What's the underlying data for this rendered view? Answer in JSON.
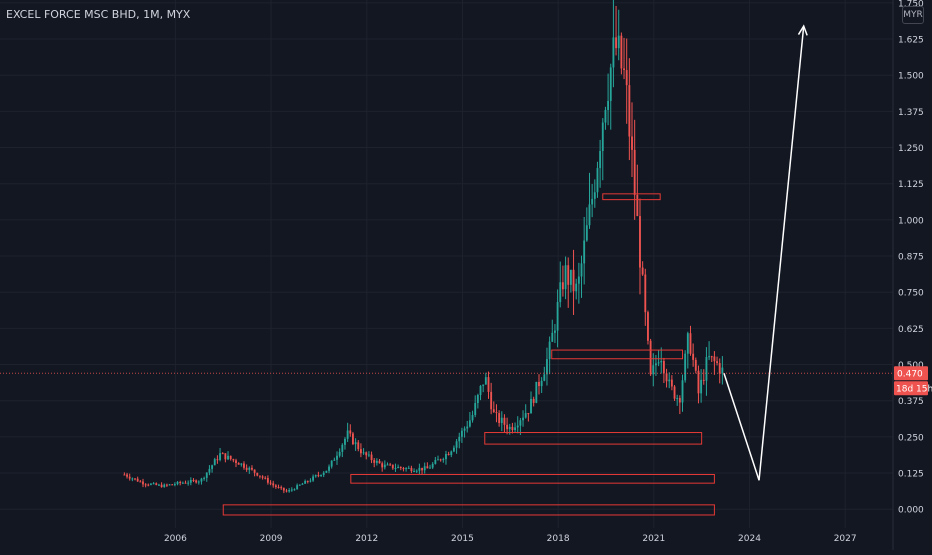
{
  "header": {
    "symbol_title": "EXCEL FORCE MSC BHD, 1M, MYX",
    "currency_button": "MYR"
  },
  "price_axis": {
    "last_price_label": "0.470",
    "countdown_label": "18d 15h"
  },
  "colors": {
    "background": "#131722",
    "grid": "#1e222d",
    "up": "#26a69a",
    "down": "#ef5350",
    "box": "#e53935",
    "arrow": "#ffffff",
    "axis_text": "#d1d4dc"
  },
  "chart_data": {
    "type": "candlestick",
    "title": "EXCEL FORCE MSC BHD, 1M, MYX",
    "ylim": [
      -0.065,
      1.76
    ],
    "xlim": [
      2000.5,
      2028.5
    ],
    "y_ticks": [
      "1.750",
      "1.625",
      "1.500",
      "1.375",
      "1.250",
      "1.125",
      "1.000",
      "0.875",
      "0.750",
      "0.625",
      "0.500",
      "0.375",
      "0.250",
      "0.125",
      "0.000"
    ],
    "x_ticks": [
      "2006",
      "2009",
      "2012",
      "2015",
      "2018",
      "2021",
      "2024",
      "2027"
    ],
    "grid": true,
    "price_path": [
      [
        2004.4,
        0.12
      ],
      [
        2005.0,
        0.09
      ],
      [
        2005.6,
        0.08
      ],
      [
        2006.1,
        0.09
      ],
      [
        2006.8,
        0.1
      ],
      [
        2007.4,
        0.19
      ],
      [
        2008.0,
        0.16
      ],
      [
        2008.6,
        0.12
      ],
      [
        2009.1,
        0.08
      ],
      [
        2009.5,
        0.06
      ],
      [
        2010.2,
        0.1
      ],
      [
        2010.8,
        0.14
      ],
      [
        2011.4,
        0.26
      ],
      [
        2011.9,
        0.19
      ],
      [
        2012.5,
        0.15
      ],
      [
        2013.3,
        0.14
      ],
      [
        2013.9,
        0.14
      ],
      [
        2014.6,
        0.2
      ],
      [
        2015.3,
        0.32
      ],
      [
        2015.7,
        0.46
      ],
      [
        2016.0,
        0.32
      ],
      [
        2016.5,
        0.28
      ],
      [
        2017.1,
        0.35
      ],
      [
        2017.7,
        0.53
      ],
      [
        2018.2,
        0.82
      ],
      [
        2018.6,
        0.75
      ],
      [
        2019.1,
        1.1
      ],
      [
        2019.5,
        1.45
      ],
      [
        2019.8,
        1.6
      ],
      [
        2020.1,
        1.48
      ],
      [
        2020.4,
        1.1
      ],
      [
        2020.7,
        0.7
      ],
      [
        2020.9,
        0.45
      ],
      [
        2021.2,
        0.55
      ],
      [
        2021.5,
        0.42
      ],
      [
        2021.8,
        0.38
      ],
      [
        2022.1,
        0.6
      ],
      [
        2022.4,
        0.4
      ],
      [
        2022.7,
        0.52
      ],
      [
        2023.0,
        0.5
      ],
      [
        2023.2,
        0.47
      ]
    ],
    "last_price": 0.47,
    "annotations": {
      "boxes": [
        {
          "x0": 2019.4,
          "x1": 2021.2,
          "y0": 1.07,
          "y1": 1.09
        },
        {
          "x0": 2017.8,
          "x1": 2021.9,
          "y0": 0.52,
          "y1": 0.55
        },
        {
          "x0": 2015.7,
          "x1": 2022.5,
          "y0": 0.225,
          "y1": 0.265
        },
        {
          "x0": 2011.5,
          "x1": 2022.9,
          "y0": 0.09,
          "y1": 0.12
        },
        {
          "x0": 2007.5,
          "x1": 2022.9,
          "y0": -0.02,
          "y1": 0.015
        }
      ],
      "arrows": [
        {
          "x0": 2023.2,
          "x1": 2024.3,
          "y0": 0.47,
          "y1": 0.1
        },
        {
          "x0": 2024.3,
          "x1": 2025.7,
          "y0": 0.1,
          "y1": 1.67
        }
      ]
    }
  }
}
